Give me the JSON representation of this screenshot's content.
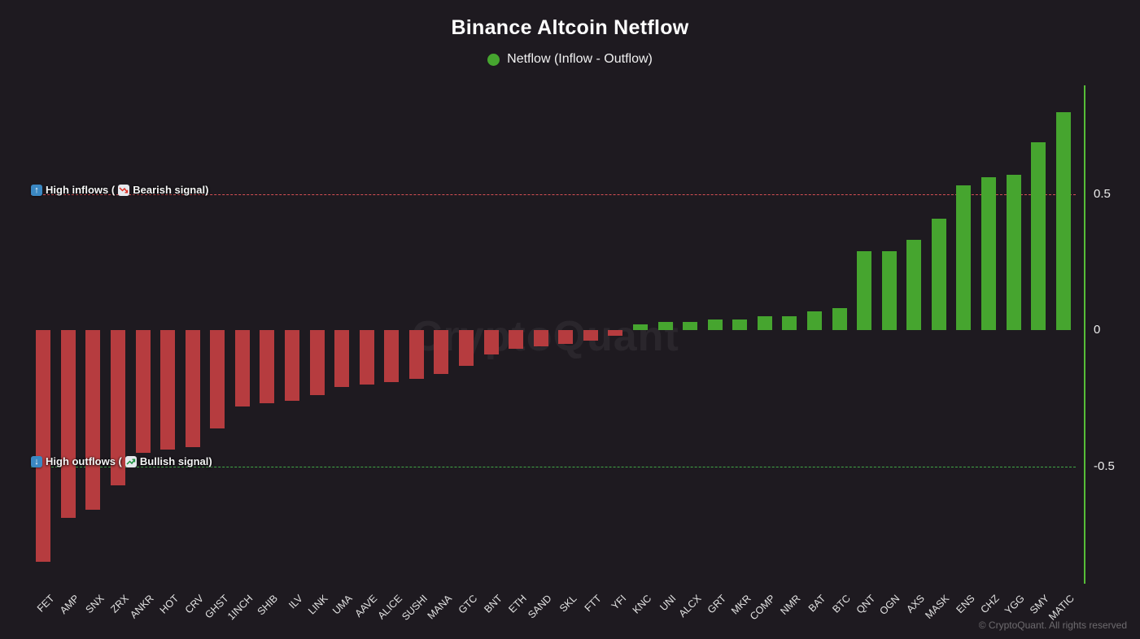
{
  "title": "Binance Altcoin Netflow",
  "legend": {
    "label": "Netflow (Inflow - Outflow)"
  },
  "annotations": {
    "inflow": {
      "label_left": "High inflows (",
      "label_right": "Bearish signal)"
    },
    "outflow": {
      "label_left": "High outflows (",
      "label_right": "Bullish signal)"
    }
  },
  "watermark": "CryptoQuant",
  "footer": "© CryptoQuant. All rights reserved",
  "icons": {
    "up_arrow": "up-arrow-blue-square-icon",
    "down_arrow": "down-arrow-blue-square-icon",
    "chart_down": "chart-decreasing-icon",
    "chart_up": "chart-increasing-icon"
  },
  "colors": {
    "background": "#1e1a20",
    "positive": "#46a52f",
    "negative": "#b63c3f",
    "inflow_line": "#e05257",
    "outflow_line": "#43b04a",
    "axis": "#56bd38"
  },
  "chart_data": {
    "type": "bar",
    "title": "Binance Altcoin Netflow",
    "legend_entries": [
      "Netflow (Inflow - Outflow)"
    ],
    "xlabel": "",
    "ylabel": "",
    "categories": [
      "FET",
      "AMP",
      "SNX",
      "ZRX",
      "ANKR",
      "HOT",
      "CRV",
      "GHST",
      "1INCH",
      "SHIB",
      "ILV",
      "LINK",
      "UMA",
      "AAVE",
      "ALICE",
      "SUSHI",
      "MANA",
      "GTC",
      "BNT",
      "ETH",
      "SAND",
      "SKL",
      "FTT",
      "YFI",
      "KNC",
      "UNI",
      "ALCX",
      "GRT",
      "MKR",
      "COMP",
      "NMR",
      "BAT",
      "BTC",
      "QNT",
      "OGN",
      "AXS",
      "MASK",
      "ENS",
      "CHZ",
      "YGG",
      "SMY",
      "MATIC"
    ],
    "values": [
      -0.85,
      -0.69,
      -0.66,
      -0.57,
      -0.45,
      -0.44,
      -0.43,
      -0.36,
      -0.28,
      -0.27,
      -0.26,
      -0.24,
      -0.21,
      -0.2,
      -0.19,
      -0.18,
      -0.16,
      -0.13,
      -0.09,
      -0.07,
      -0.06,
      -0.05,
      -0.04,
      -0.02,
      0.02,
      0.03,
      0.03,
      0.04,
      0.04,
      0.05,
      0.05,
      0.07,
      0.08,
      0.29,
      0.29,
      0.33,
      0.41,
      0.53,
      0.56,
      0.57,
      0.69,
      0.8
    ],
    "yticks": [
      0.5,
      0,
      -0.5
    ],
    "ylim": [
      -0.94,
      0.9
    ],
    "grid": false,
    "legend_position": "top-center",
    "bar_colors": {
      "positive": "#46a52f",
      "negative": "#b63c3f"
    },
    "hlines": [
      {
        "y": 0.5,
        "color": "#e05257",
        "style": "dashed",
        "label": "High inflows (Bearish signal)"
      },
      {
        "y": -0.5,
        "color": "#43b04a",
        "style": "dashed",
        "label": "High outflows (Bullish signal)"
      }
    ]
  }
}
